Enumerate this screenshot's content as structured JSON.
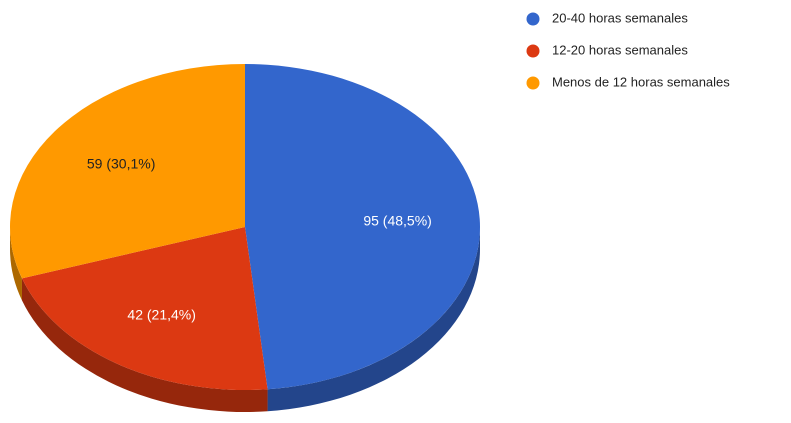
{
  "chart_data": {
    "type": "pie",
    "categories": [
      "20-40 horas semanales",
      "12-20 horas semanales",
      "Menos de 12 horas semanales"
    ],
    "values": [
      95,
      42,
      59
    ],
    "value_labels": [
      "95 (48,5%)",
      "42 (21,4%)",
      "59 (30,1%)"
    ],
    "colors": [
      "#3366cc",
      "#dc3912",
      "#ff9900"
    ],
    "legend": "right"
  }
}
